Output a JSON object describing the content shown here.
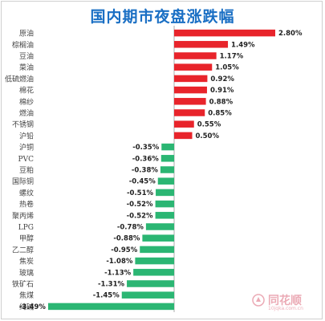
{
  "chart_data": {
    "type": "bar",
    "orientation": "horizontal",
    "title": "国内期市夜盘涨跌幅",
    "categories": [
      "原油",
      "棕榈油",
      "豆油",
      "菜油",
      "低硫燃油",
      "棉花",
      "棉纱",
      "燃油",
      "不锈钢",
      "沪铅",
      "沪铜",
      "PVC",
      "豆粕",
      "国际铜",
      "螺纹",
      "热卷",
      "聚丙烯",
      "LPG",
      "甲醇",
      "乙二醇",
      "焦炭",
      "玻璃",
      "铁矿石",
      "焦煤",
      "纯碱"
    ],
    "values": [
      2.8,
      1.49,
      1.17,
      1.05,
      0.92,
      0.91,
      0.88,
      0.85,
      0.55,
      0.5,
      -0.35,
      -0.36,
      -0.38,
      -0.45,
      -0.51,
      -0.52,
      -0.52,
      -0.78,
      -0.88,
      -0.95,
      -1.08,
      -1.13,
      -1.31,
      -1.45,
      -3.49
    ],
    "labels": [
      "2.80%",
      "1.49%",
      "1.17%",
      "1.05%",
      "0.92%",
      "0.91%",
      "0.88%",
      "0.85%",
      "0.55%",
      "0.50%",
      "-0.35%",
      "-0.36%",
      "-0.38%",
      "-0.45%",
      "-0.51%",
      "-0.52%",
      "-0.52%",
      "-0.78%",
      "-0.88%",
      "-0.95%",
      "-1.08%",
      "-1.13%",
      "-1.31%",
      "-1.45%",
      "-3.49%"
    ],
    "colors": {
      "positive": "#e8242b",
      "negative": "#2bb673",
      "title": "#1a6fc4"
    }
  },
  "watermark": {
    "brand": "同花顺",
    "sub": "10jqka.com.cn"
  }
}
